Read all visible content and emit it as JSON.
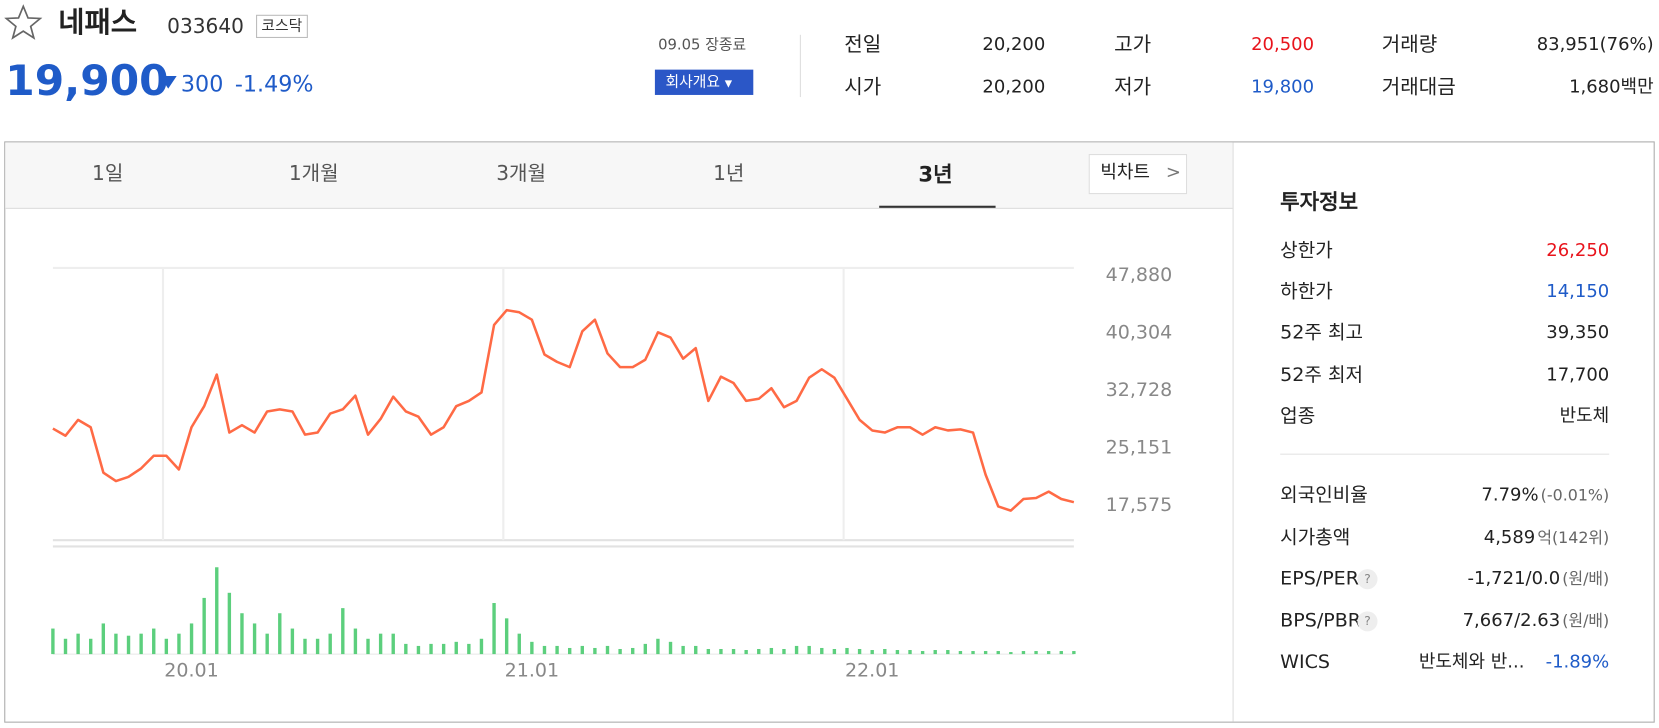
{
  "header": {
    "name": "네패스",
    "code": "033640",
    "market": "코스닥",
    "price": "19,900",
    "change": "300",
    "change_pct": "-1.49%",
    "session": "09.05 장종료",
    "company_button": "회사개요"
  },
  "stats": [
    {
      "label": "전일",
      "value": "20,200"
    },
    {
      "label": "시가",
      "value": "20,200"
    },
    {
      "label": "고가",
      "value": "20,500"
    },
    {
      "label": "저가",
      "value": "19,800"
    },
    {
      "label": "거래량",
      "value": "83,951(76%)"
    },
    {
      "label": "거래대금",
      "value": "1,680백만"
    }
  ],
  "tabs": [
    "1일",
    "1개월",
    "3개월",
    "1년",
    "3년"
  ],
  "big_chart": "빅차트",
  "chart_data": {
    "type": "line",
    "categories": [
      null,
      null,
      null,
      null,
      null,
      null,
      null,
      null,
      null,
      null,
      null,
      "20.01",
      null,
      null,
      null,
      null,
      null,
      null,
      null,
      null,
      null,
      null,
      null,
      null,
      null,
      null,
      null,
      null,
      null,
      null,
      null,
      null,
      null,
      null,
      null,
      null,
      null,
      null,
      "21.01",
      null,
      null,
      null,
      null,
      null,
      null,
      null,
      null,
      null,
      null,
      null,
      null,
      null,
      null,
      null,
      null,
      null,
      null,
      null,
      null,
      null,
      null,
      null,
      null,
      null,
      null,
      "22.01",
      null,
      null,
      null,
      null,
      null,
      null,
      null,
      null,
      null,
      null,
      null,
      null,
      null,
      null,
      null,
      null
    ],
    "series": [
      {
        "color": "#ff6a45",
        "values": [
          27700,
          26750,
          28830,
          27860,
          21880,
          20770,
          21330,
          22440,
          24110,
          24110,
          22300,
          27860,
          30640,
          34810,
          27170,
          28140,
          27170,
          29950,
          30220,
          29950,
          26890,
          27170,
          29670,
          30220,
          32030,
          26890,
          28970,
          31890,
          29950,
          29250,
          26890,
          27860,
          30640,
          31340,
          32450,
          41340,
          43290,
          43010,
          42040,
          37450,
          36480,
          35780,
          40510,
          42040,
          37590,
          35780,
          35780,
          36760,
          40370,
          39680,
          36900,
          38290,
          31340,
          34530,
          33700,
          31340,
          31610,
          33000,
          30500,
          31340,
          34390,
          35510,
          34390,
          31610,
          28830,
          27440,
          27170,
          27860,
          27860,
          26890,
          27860,
          27440,
          27580,
          27170,
          21610,
          17440,
          16880,
          18410,
          18550,
          19380,
          18410,
          17990
        ]
      }
    ],
    "ylim": [
      12990,
      48850
    ],
    "yticks": [
      {
        "value": 47880,
        "label": "47,880"
      },
      {
        "value": 40304,
        "label": "40,304"
      },
      {
        "value": 32728,
        "label": "32,728"
      },
      {
        "value": 25151,
        "label": "25,151"
      },
      {
        "value": 17575,
        "label": "17,575"
      }
    ],
    "volume": {
      "color": "#5ccf7d",
      "ylim": [
        0,
        95
      ],
      "values": [
        25,
        15,
        20,
        15,
        30,
        20,
        18,
        20,
        25,
        15,
        20,
        30,
        55,
        85,
        60,
        40,
        30,
        20,
        40,
        25,
        15,
        15,
        20,
        45,
        25,
        15,
        20,
        20,
        10,
        8,
        10,
        10,
        12,
        10,
        15,
        50,
        35,
        20,
        12,
        8,
        8,
        6,
        8,
        6,
        8,
        5,
        6,
        10,
        15,
        12,
        8,
        8,
        5,
        5,
        5,
        4,
        5,
        6,
        5,
        8,
        8,
        6,
        5,
        6,
        5,
        4,
        5,
        4,
        4,
        3,
        4,
        4,
        3,
        3,
        3,
        3,
        2,
        3,
        3,
        3,
        3,
        3
      ]
    }
  },
  "invest_info": {
    "title": "투자정보",
    "rows_a": [
      {
        "label": "상한가",
        "value": "26,250"
      },
      {
        "label": "하한가",
        "value": "14,150"
      },
      {
        "label": "52주 최고",
        "value": "39,350"
      },
      {
        "label": "52주 최저",
        "value": "17,700"
      },
      {
        "label": "업종",
        "value": "반도체"
      }
    ],
    "rows_b": [
      {
        "label": "외국인비율",
        "value": "7.79%",
        "note": "(-0.01%)"
      },
      {
        "label": "시가총액",
        "value": "4,589",
        "note": "억(142위)"
      },
      {
        "label": "EPS/PER",
        "value": "-1,721/0.0",
        "note": "(원/배)"
      },
      {
        "label": "BPS/PBR",
        "value": "7,667/2.63",
        "note": "(원/배)"
      },
      {
        "label": "WICS",
        "value": "반도체와 반...",
        "note": "-1.89%"
      }
    ]
  }
}
